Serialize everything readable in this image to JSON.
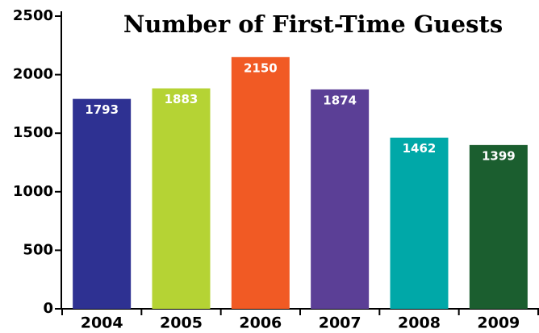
{
  "chart_data": {
    "type": "bar",
    "title": "Number of First-Time Guests",
    "categories": [
      "2004",
      "2005",
      "2006",
      "2007",
      "2008",
      "2009"
    ],
    "values": [
      1793,
      1883,
      2150,
      1874,
      1462,
      1399
    ],
    "colors": [
      "#2e3192",
      "#b5d334",
      "#f15a24",
      "#5b3f96",
      "#00a8a8",
      "#1b5e2f"
    ],
    "ylim": [
      0,
      2500
    ],
    "yticks": [
      0,
      500,
      1000,
      1500,
      2000,
      2500
    ]
  }
}
